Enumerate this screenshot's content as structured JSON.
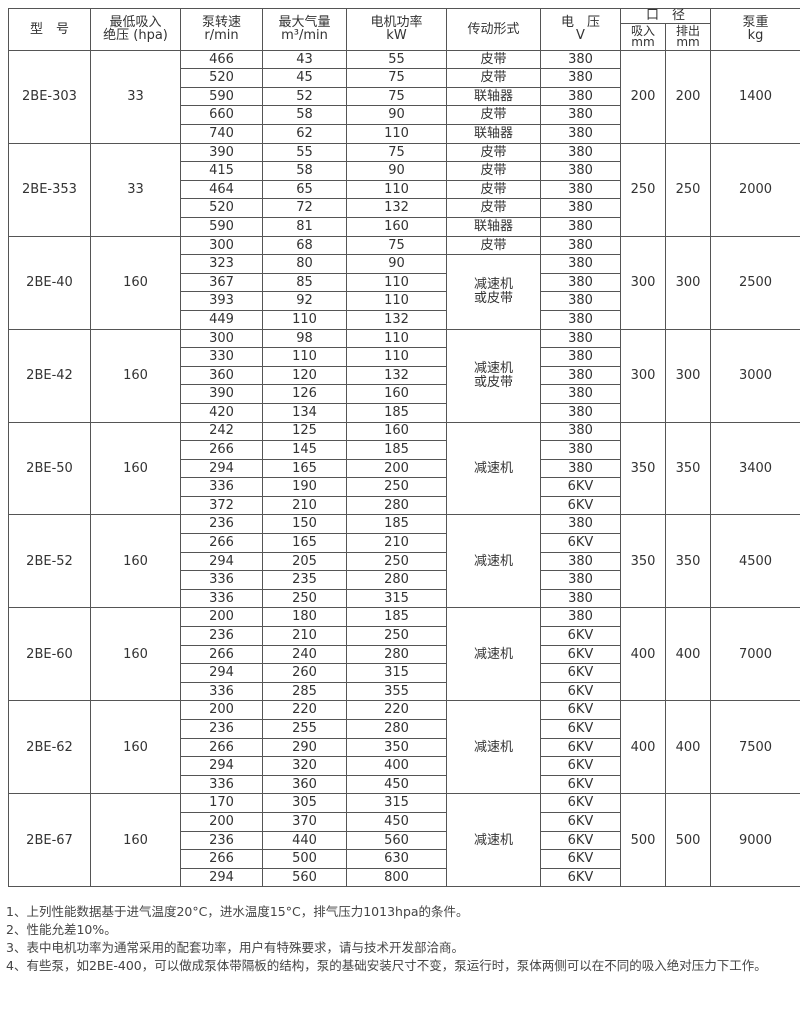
{
  "header": {
    "model": "型　号",
    "min_pressure": "最低吸入\n绝压 (hpa)",
    "speed": "泵转速\nr/min",
    "flow": "最大气量\nm³/min",
    "power": "电机功率\nkW",
    "drive": "传动形式",
    "voltage": "电　压\nV",
    "diameter": "口　径",
    "suction": "吸入\nmm",
    "discharge": "排出\nmm",
    "weight": "泵重\nkg"
  },
  "groups": [
    {
      "model": "2BE-303",
      "pressure": "33",
      "suction": "200",
      "discharge": "200",
      "weight": "1400",
      "rows": [
        [
          "466",
          "43",
          "55",
          "皮带",
          "380"
        ],
        [
          "520",
          "45",
          "75",
          "皮带",
          "380"
        ],
        [
          "590",
          "52",
          "75",
          "联轴器",
          "380"
        ],
        [
          "660",
          "58",
          "90",
          "皮带",
          "380"
        ],
        [
          "740",
          "62",
          "110",
          "联轴器",
          "380"
        ]
      ],
      "drive_merge": null
    },
    {
      "model": "2BE-353",
      "pressure": "33",
      "suction": "250",
      "discharge": "250",
      "weight": "2000",
      "rows": [
        [
          "390",
          "55",
          "75",
          "皮带",
          "380"
        ],
        [
          "415",
          "58",
          "90",
          "皮带",
          "380"
        ],
        [
          "464",
          "65",
          "110",
          "皮带",
          "380"
        ],
        [
          "520",
          "72",
          "132",
          "皮带",
          "380"
        ],
        [
          "590",
          "81",
          "160",
          "联轴器",
          "380"
        ]
      ],
      "drive_merge": null
    },
    {
      "model": "2BE-40",
      "pressure": "160",
      "suction": "300",
      "discharge": "300",
      "weight": "2500",
      "rows": [
        [
          "300",
          "68",
          "75",
          "皮带",
          "380"
        ],
        [
          "323",
          "80",
          "90",
          "",
          "380"
        ],
        [
          "367",
          "85",
          "110",
          "",
          "380"
        ],
        [
          "393",
          "92",
          "110",
          "",
          "380"
        ],
        [
          "449",
          "110",
          "132",
          "",
          "380"
        ]
      ],
      "drive_merge": {
        "from": 1,
        "text": "减速机\n或皮带"
      }
    },
    {
      "model": "2BE-42",
      "pressure": "160",
      "suction": "300",
      "discharge": "300",
      "weight": "3000",
      "rows": [
        [
          "300",
          "98",
          "110",
          "",
          "380"
        ],
        [
          "330",
          "110",
          "110",
          "",
          "380"
        ],
        [
          "360",
          "120",
          "132",
          "",
          "380"
        ],
        [
          "390",
          "126",
          "160",
          "",
          "380"
        ],
        [
          "420",
          "134",
          "185",
          "",
          "380"
        ]
      ],
      "drive_merge": {
        "from": 0,
        "text": "减速机\n或皮带"
      }
    },
    {
      "model": "2BE-50",
      "pressure": "160",
      "suction": "350",
      "discharge": "350",
      "weight": "3400",
      "rows": [
        [
          "242",
          "125",
          "160",
          "",
          "380"
        ],
        [
          "266",
          "145",
          "185",
          "",
          "380"
        ],
        [
          "294",
          "165",
          "200",
          "",
          "380"
        ],
        [
          "336",
          "190",
          "250",
          "",
          "6KV"
        ],
        [
          "372",
          "210",
          "280",
          "",
          "6KV"
        ]
      ],
      "drive_merge": {
        "from": 0,
        "text": "减速机"
      }
    },
    {
      "model": "2BE-52",
      "pressure": "160",
      "suction": "350",
      "discharge": "350",
      "weight": "4500",
      "rows": [
        [
          "236",
          "150",
          "185",
          "",
          "380"
        ],
        [
          "266",
          "165",
          "210",
          "",
          "6KV"
        ],
        [
          "294",
          "205",
          "250",
          "",
          "380"
        ],
        [
          "336",
          "235",
          "280",
          "",
          "380"
        ],
        [
          "336",
          "250",
          "315",
          "",
          "380"
        ]
      ],
      "drive_merge": {
        "from": 0,
        "text": "减速机"
      }
    },
    {
      "model": "2BE-60",
      "pressure": "160",
      "suction": "400",
      "discharge": "400",
      "weight": "7000",
      "rows": [
        [
          "200",
          "180",
          "185",
          "",
          "380"
        ],
        [
          "236",
          "210",
          "250",
          "",
          "6KV"
        ],
        [
          "266",
          "240",
          "280",
          "",
          "6KV"
        ],
        [
          "294",
          "260",
          "315",
          "",
          "6KV"
        ],
        [
          "336",
          "285",
          "355",
          "",
          "6KV"
        ]
      ],
      "drive_merge": {
        "from": 0,
        "text": "减速机"
      }
    },
    {
      "model": "2BE-62",
      "pressure": "160",
      "suction": "400",
      "discharge": "400",
      "weight": "7500",
      "rows": [
        [
          "200",
          "220",
          "220",
          "",
          "6KV"
        ],
        [
          "236",
          "255",
          "280",
          "",
          "6KV"
        ],
        [
          "266",
          "290",
          "350",
          "",
          "6KV"
        ],
        [
          "294",
          "320",
          "400",
          "",
          "6KV"
        ],
        [
          "336",
          "360",
          "450",
          "",
          "6KV"
        ]
      ],
      "drive_merge": {
        "from": 0,
        "text": "减速机"
      }
    },
    {
      "model": "2BE-67",
      "pressure": "160",
      "suction": "500",
      "discharge": "500",
      "weight": "9000",
      "rows": [
        [
          "170",
          "305",
          "315",
          "",
          "6KV"
        ],
        [
          "200",
          "370",
          "450",
          "",
          "6KV"
        ],
        [
          "236",
          "440",
          "560",
          "",
          "6KV"
        ],
        [
          "266",
          "500",
          "630",
          "",
          "6KV"
        ],
        [
          "294",
          "560",
          "800",
          "",
          "6KV"
        ]
      ],
      "drive_merge": {
        "from": 0,
        "text": "减速机"
      }
    }
  ],
  "notes": [
    "1、上列性能数据基于进气温度20°C，进水温度15°C，排气压力1013hpa的条件。",
    "2、性能允差10%。",
    "3、表中电机功率为通常采用的配套功率，用户有特殊要求，请与技术开发部洽商。",
    "4、有些泵，如2BE-400，可以做成泵体带隔板的结构，泵的基础安装尺寸不变，泵运行时，泵体两侧可以在不同的吸入绝对压力下工作。"
  ]
}
